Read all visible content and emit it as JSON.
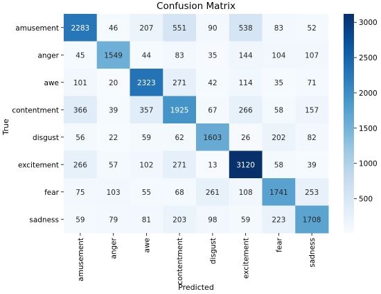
{
  "chart_data": {
    "type": "heatmap",
    "title": "Confusion Matrix",
    "xlabel": "Predicted",
    "ylabel": "True",
    "x_categories": [
      "amusement",
      "anger",
      "awe",
      "contentment",
      "disgust",
      "excitement",
      "fear",
      "sadness"
    ],
    "y_categories": [
      "amusement",
      "anger",
      "awe",
      "contentment",
      "disgust",
      "excitement",
      "fear",
      "sadness"
    ],
    "values": [
      [
        2283,
        46,
        207,
        551,
        90,
        538,
        83,
        52
      ],
      [
        45,
        1549,
        44,
        83,
        35,
        144,
        104,
        107
      ],
      [
        101,
        20,
        2323,
        271,
        42,
        114,
        35,
        71
      ],
      [
        366,
        39,
        357,
        1925,
        67,
        266,
        58,
        157
      ],
      [
        56,
        22,
        59,
        62,
        1603,
        26,
        202,
        82
      ],
      [
        266,
        57,
        102,
        271,
        13,
        3120,
        58,
        39
      ],
      [
        75,
        103,
        55,
        68,
        261,
        108,
        1741,
        253
      ],
      [
        59,
        79,
        81,
        203,
        98,
        59,
        223,
        1708
      ]
    ],
    "colorscale": "Blues",
    "colorbar": {
      "range": [
        13,
        3120
      ],
      "ticks": [
        500,
        1000,
        1500,
        2000,
        2500,
        3000
      ],
      "tick_labels": [
        "500",
        "1000",
        "1500",
        "2000",
        "2500",
        "3000"
      ]
    },
    "annotations": "cell counts printed in each cell",
    "grid": false,
    "legend": "colorbar-right"
  }
}
